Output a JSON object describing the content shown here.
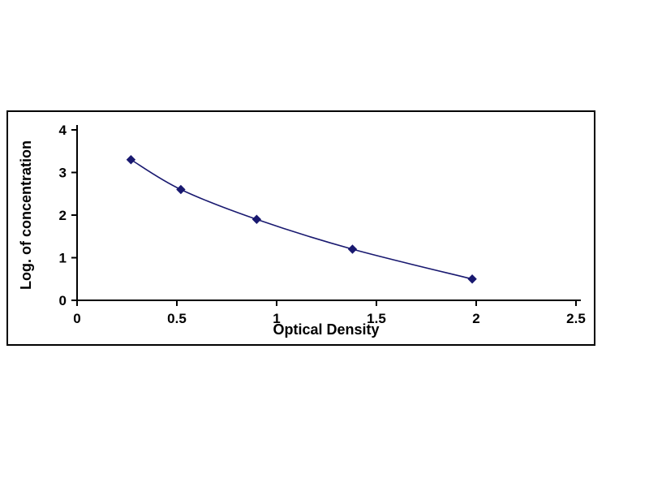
{
  "page": {
    "background_color": "#ffffff"
  },
  "chart_data": {
    "type": "line",
    "title": "",
    "xlabel": "Optical Density",
    "ylabel": "Log. of concentration",
    "x": [
      0.27,
      0.52,
      0.9,
      1.38,
      1.98
    ],
    "y": [
      3.3,
      2.6,
      1.9,
      1.2,
      0.5
    ],
    "xlim": [
      0,
      2.5
    ],
    "ylim": [
      0,
      4
    ],
    "xticks": [
      0,
      0.5,
      1,
      1.5,
      2,
      2.5
    ],
    "xtick_labels": [
      "0",
      "0.5",
      "1",
      "1.5",
      "2",
      "2.5"
    ],
    "yticks": [
      0,
      1,
      2,
      3,
      4
    ],
    "ytick_labels": [
      "0",
      "1",
      "2",
      "3",
      "4"
    ],
    "grid": false,
    "legend_position": "none",
    "line_color": "#191970",
    "marker": "diamond",
    "marker_color": "#191970",
    "axis_color": "#000000"
  }
}
